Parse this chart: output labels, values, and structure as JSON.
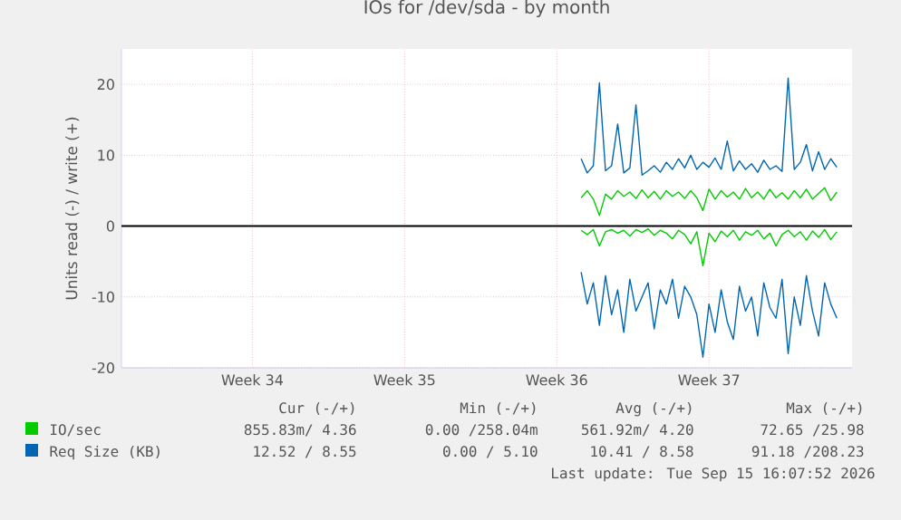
{
  "chart_data": {
    "type": "line",
    "title": "IOs for /dev/sda - by month",
    "ylabel": "Units read (-) / write (+)",
    "ylim": [
      -20,
      25
    ],
    "yticks": [
      -20,
      -10,
      0,
      10,
      20
    ],
    "grid": true,
    "legend": "bottom",
    "marker": "none",
    "line_style": "solid",
    "ref_lines": [
      {
        "axis": "y",
        "value": 0,
        "color": "#000000"
      }
    ],
    "categories": [
      null,
      null,
      null,
      null,
      null,
      null,
      null,
      null,
      null,
      null,
      null,
      null,
      null,
      null,
      null,
      null,
      null,
      null,
      null,
      null,
      null,
      "Week 34",
      null,
      null,
      null,
      null,
      null,
      null,
      null,
      null,
      null,
      null,
      null,
      null,
      null,
      null,
      null,
      null,
      null,
      null,
      null,
      null,
      null,
      null,
      null,
      null,
      "Week 35",
      null,
      null,
      null,
      null,
      null,
      null,
      null,
      null,
      null,
      null,
      null,
      null,
      null,
      null,
      null,
      null,
      null,
      null,
      null,
      null,
      null,
      null,
      null,
      null,
      "Week 36",
      null,
      null,
      null,
      null,
      null,
      null,
      null,
      null,
      null,
      null,
      null,
      null,
      null,
      null,
      null,
      null,
      null,
      null,
      null,
      null,
      null,
      null,
      null,
      null,
      "Week 37",
      null,
      null,
      null,
      null,
      null,
      null,
      null,
      null,
      null,
      null,
      null,
      null,
      null,
      null,
      null,
      null,
      null,
      null,
      null,
      null,
      null,
      null,
      null
    ],
    "series": [
      {
        "name": "IO/sec",
        "color": "#00cc00",
        "values": [
          null,
          null,
          null,
          null,
          null,
          null,
          null,
          null,
          null,
          null,
          null,
          null,
          null,
          null,
          null,
          null,
          null,
          null,
          null,
          null,
          null,
          null,
          null,
          null,
          null,
          null,
          null,
          null,
          null,
          null,
          null,
          null,
          null,
          null,
          null,
          null,
          null,
          null,
          null,
          null,
          null,
          null,
          null,
          null,
          null,
          null,
          null,
          null,
          null,
          null,
          null,
          null,
          null,
          null,
          null,
          null,
          null,
          null,
          null,
          null,
          null,
          null,
          null,
          null,
          null,
          null,
          null,
          null,
          null,
          null,
          null,
          null,
          null,
          null,
          null,
          4.0,
          5.0,
          3.8,
          1.5,
          4.5,
          3.8,
          5.0,
          4.2,
          4.8,
          3.9,
          5.1,
          4.0,
          4.9,
          3.8,
          5.0,
          4.2,
          4.8,
          3.9,
          5.0,
          4.0,
          2.2,
          5.2,
          3.8,
          5.0,
          4.1,
          4.8,
          3.8,
          5.3,
          4.0,
          4.8,
          3.8,
          5.2,
          4.0,
          4.7,
          3.8,
          5.0,
          4.0,
          5.2,
          3.8,
          4.6,
          5.4,
          3.6,
          4.8,
          null,
          null
        ]
      },
      {
        "color": "#00cc00",
        "values": [
          null,
          null,
          null,
          null,
          null,
          null,
          null,
          null,
          null,
          null,
          null,
          null,
          null,
          null,
          null,
          null,
          null,
          null,
          null,
          null,
          null,
          null,
          null,
          null,
          null,
          null,
          null,
          null,
          null,
          null,
          null,
          null,
          null,
          null,
          null,
          null,
          null,
          null,
          null,
          null,
          null,
          null,
          null,
          null,
          null,
          null,
          null,
          null,
          null,
          null,
          null,
          null,
          null,
          null,
          null,
          null,
          null,
          null,
          null,
          null,
          null,
          null,
          null,
          null,
          null,
          null,
          null,
          null,
          null,
          null,
          null,
          null,
          null,
          null,
          null,
          -0.6,
          -1.2,
          -0.5,
          -2.8,
          -0.8,
          -0.5,
          -1.0,
          -0.6,
          -1.4,
          -0.5,
          -0.9,
          -0.4,
          -1.3,
          -0.6,
          -1.0,
          -1.8,
          -0.6,
          -1.2,
          -2.5,
          -0.8,
          -5.6,
          -1.0,
          -2.2,
          -0.7,
          -1.5,
          -0.6,
          -2.0,
          -0.8,
          -1.3,
          -0.6,
          -1.8,
          -1.0,
          -2.8,
          -1.2,
          -0.6,
          -1.5,
          -0.8,
          -2.0,
          -0.7,
          -1.6,
          -0.5,
          -1.9,
          -0.8,
          null,
          null
        ]
      },
      {
        "name": "Req Size (KB)",
        "color": "#0066b3",
        "values": [
          null,
          null,
          null,
          null,
          null,
          null,
          null,
          null,
          null,
          null,
          null,
          null,
          null,
          null,
          null,
          null,
          null,
          null,
          null,
          null,
          null,
          null,
          null,
          null,
          null,
          null,
          null,
          null,
          null,
          null,
          null,
          null,
          null,
          null,
          null,
          null,
          null,
          null,
          null,
          null,
          null,
          null,
          null,
          null,
          null,
          null,
          null,
          null,
          null,
          null,
          null,
          null,
          null,
          null,
          null,
          null,
          null,
          null,
          null,
          null,
          null,
          null,
          null,
          null,
          null,
          null,
          null,
          null,
          null,
          null,
          null,
          null,
          null,
          null,
          null,
          9.5,
          7.5,
          8.5,
          20.2,
          7.8,
          8.5,
          14.4,
          7.5,
          8.2,
          17.1,
          7.2,
          7.8,
          8.5,
          7.6,
          9.0,
          8.0,
          9.5,
          8.2,
          10.0,
          8.0,
          9.0,
          8.3,
          9.6,
          8.0,
          12.0,
          7.8,
          9.2,
          8.0,
          8.8,
          7.6,
          9.3,
          8.0,
          8.5,
          7.7,
          20.9,
          8.0,
          9.0,
          11.5,
          7.8,
          10.5,
          8.0,
          9.5,
          8.3,
          null,
          null
        ]
      },
      {
        "color": "#0066b3",
        "values": [
          null,
          null,
          null,
          null,
          null,
          null,
          null,
          null,
          null,
          null,
          null,
          null,
          null,
          null,
          null,
          null,
          null,
          null,
          null,
          null,
          null,
          null,
          null,
          null,
          null,
          null,
          null,
          null,
          null,
          null,
          null,
          null,
          null,
          null,
          null,
          null,
          null,
          null,
          null,
          null,
          null,
          null,
          null,
          null,
          null,
          null,
          null,
          null,
          null,
          null,
          null,
          null,
          null,
          null,
          null,
          null,
          null,
          null,
          null,
          null,
          null,
          null,
          null,
          null,
          null,
          null,
          null,
          null,
          null,
          null,
          null,
          null,
          null,
          null,
          null,
          -6.5,
          -11.0,
          -8.0,
          -14.0,
          -7.0,
          -12.5,
          -9.0,
          -15.0,
          -7.5,
          -12.0,
          -10.0,
          -8.0,
          -14.5,
          -9.0,
          -11.0,
          -7.5,
          -13.0,
          -8.5,
          -10.0,
          -12.5,
          -18.5,
          -11.0,
          -15.0,
          -9.0,
          -13.5,
          -16.0,
          -8.5,
          -12.0,
          -10.0,
          -15.5,
          -8.0,
          -11.5,
          -13.0,
          -7.5,
          -18.0,
          -10.0,
          -14.0,
          -7.0,
          -12.0,
          -15.5,
          -8.0,
          -11.0,
          -13.0,
          null,
          null
        ]
      }
    ],
    "annotations": [
      "Cur (-/+)",
      "Min (-/+)",
      "Avg (-/+)",
      "Max (-/+)",
      "855.83m/ 4.36",
      "0.00 /258.04m",
      "561.92m/ 4.20",
      "72.65 /25.98",
      "12.52 / 8.55",
      "0.00 / 5.10",
      "10.41 / 8.58",
      "91.18 /208.23",
      "Last update: Tue Sep 15 16:07:52 2026"
    ]
  }
}
